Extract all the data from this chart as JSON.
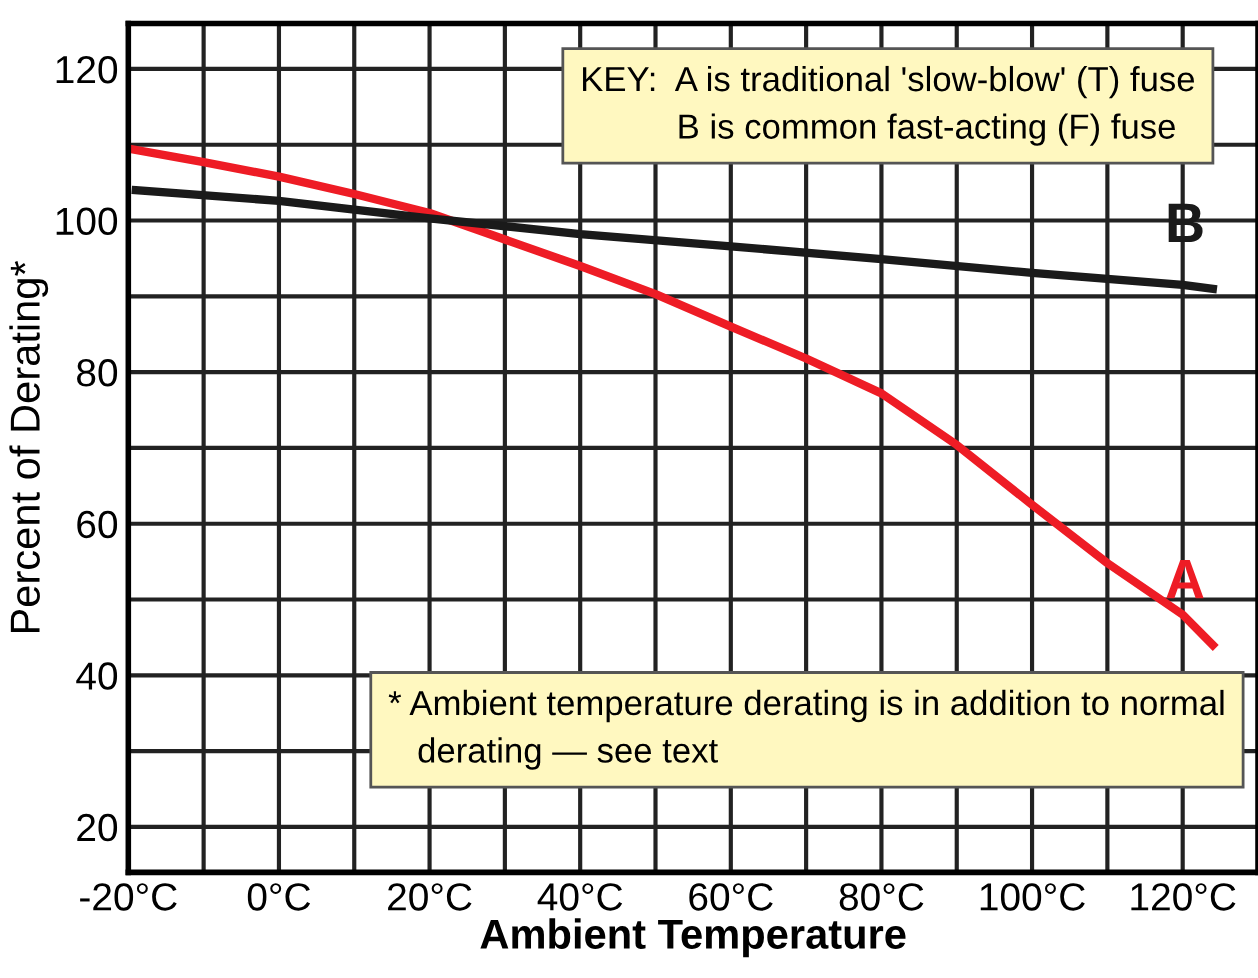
{
  "chart_data": {
    "type": "line",
    "xlabel": "Ambient Temperature",
    "ylabel": "Percent of Derating*",
    "xlim": [
      -20,
      130
    ],
    "ylim": [
      14,
      126
    ],
    "xticks": [
      {
        "value": -20,
        "label": "-20°C"
      },
      {
        "value": -10,
        "label": null
      },
      {
        "value": 0,
        "label": "0°C"
      },
      {
        "value": 10,
        "label": null
      },
      {
        "value": 20,
        "label": "20°C"
      },
      {
        "value": 30,
        "label": null
      },
      {
        "value": 40,
        "label": "40°C"
      },
      {
        "value": 50,
        "label": null
      },
      {
        "value": 60,
        "label": "60°C"
      },
      {
        "value": 70,
        "label": null
      },
      {
        "value": 80,
        "label": "80°C"
      },
      {
        "value": 90,
        "label": null
      },
      {
        "value": 100,
        "label": "100°C"
      },
      {
        "value": 110,
        "label": null
      },
      {
        "value": 120,
        "label": "120°C"
      }
    ],
    "yticks": [
      20,
      {
        "value": 30,
        "label": null
      },
      40,
      {
        "value": 50,
        "label": null
      },
      60,
      {
        "value": 70,
        "label": null
      },
      80,
      {
        "value": 90,
        "label": null
      },
      100,
      {
        "value": 110,
        "label": null
      },
      120
    ],
    "grid": true,
    "legend": false,
    "marker": "none",
    "line_style": "solid",
    "series": [
      {
        "name": "A",
        "color": "#ee1c25",
        "x": [
          -20,
          -10,
          0,
          10,
          20,
          30,
          40,
          50,
          60,
          70,
          80,
          90,
          100,
          110,
          120,
          124
        ],
        "values": [
          109.5,
          107.7,
          105.8,
          103.5,
          101,
          97.5,
          94,
          90.3,
          86,
          81.8,
          77.2,
          70.4,
          62.5,
          54.8,
          48,
          44
        ]
      },
      {
        "name": "B",
        "color": "#1a1a1a",
        "x": [
          -19,
          0,
          20,
          40,
          60,
          80,
          100,
          120,
          124
        ],
        "values": [
          104,
          102.6,
          100.3,
          98.2,
          96.6,
          94.9,
          93.1,
          91.5,
          91
        ]
      }
    ],
    "annotations": [
      "KEY:  A is traditional 'slow-blow' (T) fuse\n          B is common fast-acting (F) fuse",
      "* Ambient temperature derating is in addition to normal\n   derating — see text"
    ]
  }
}
